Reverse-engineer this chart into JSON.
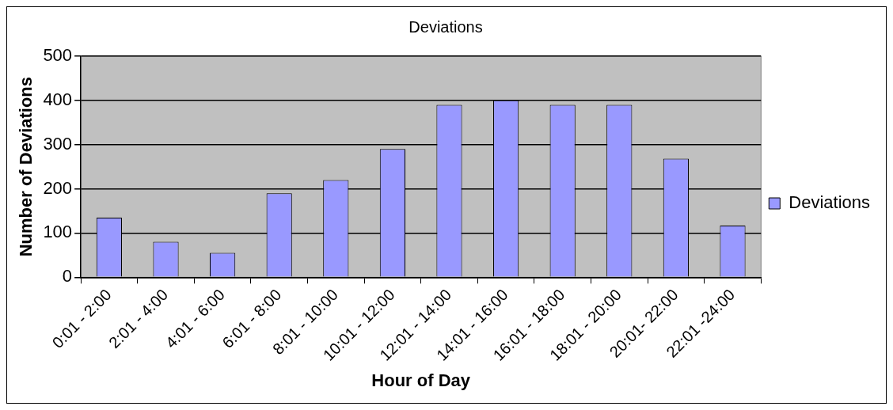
{
  "chart_data": {
    "type": "bar",
    "title": "Deviations",
    "xlabel": "Hour of Day",
    "ylabel": "Number of Deviations",
    "categories": [
      "0:01 - 2:00",
      "2:01 - 4:00",
      "4:01 - 6:00",
      "6:01 - 8:00",
      "8:01 - 10:00",
      "10:01 - 12:00",
      "12:01 - 14:00",
      "14:01 - 16:00",
      "16:01 - 18:00",
      "18:01 - 20:00",
      "20:01- 22:00",
      "22:01 -24:00"
    ],
    "series": [
      {
        "name": "Deviations",
        "color": "#9999ff",
        "values": [
          135,
          80,
          55,
          190,
          220,
          290,
          390,
          400,
          390,
          390,
          268,
          117
        ]
      }
    ],
    "ylim": [
      0,
      500
    ],
    "yticks": [
      0,
      100,
      200,
      300,
      400,
      500
    ],
    "grid": "y",
    "legend": "right"
  }
}
